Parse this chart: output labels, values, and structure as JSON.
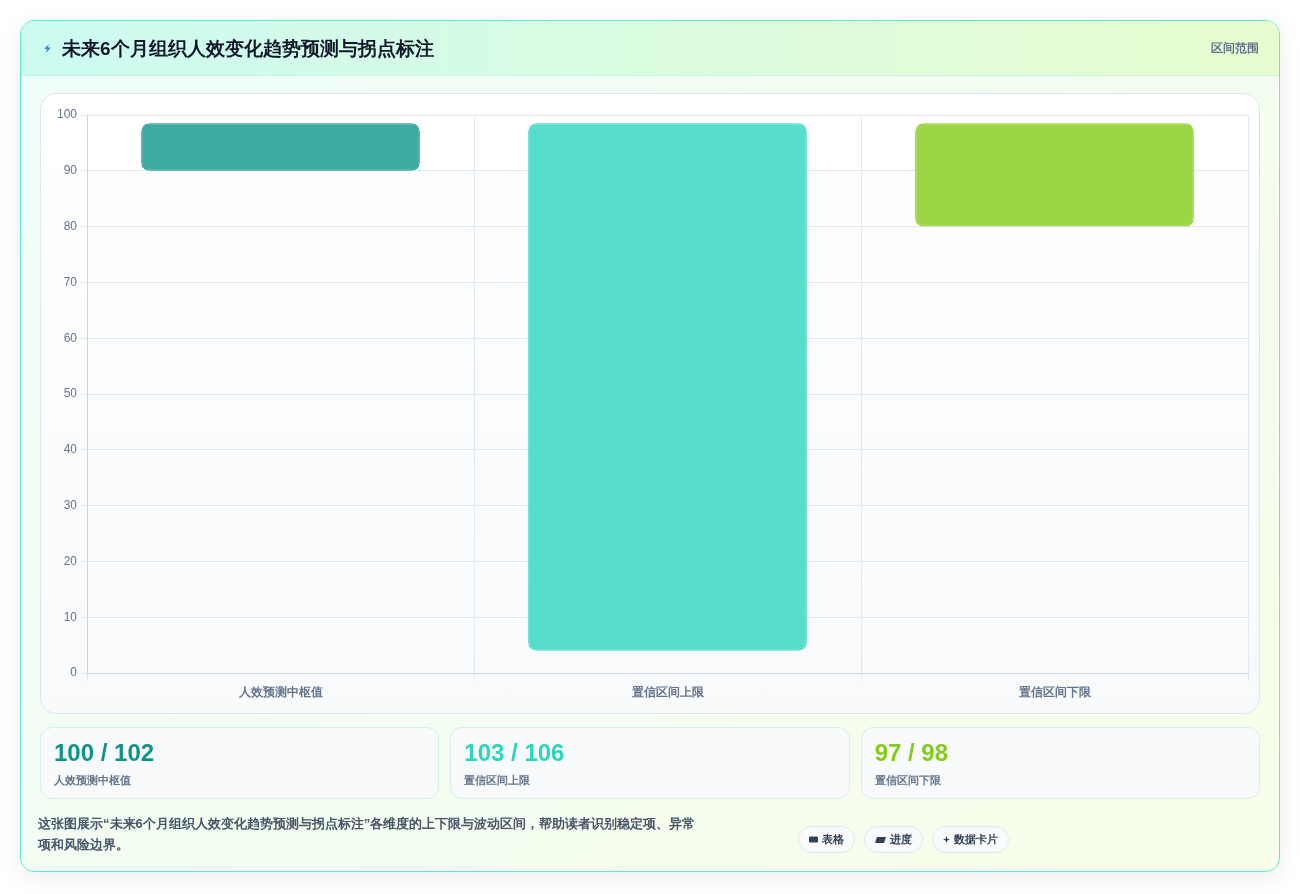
{
  "chart_data": {
    "type": "bar",
    "title": "未来6个月组织人效变化趋势预测与拐点标注",
    "subtitle": "区间范围",
    "categories": [
      "人效预测中枢值",
      "置信区间上限",
      "置信区间下限"
    ],
    "values": [
      8.5,
      94.5,
      18.5
    ],
    "base": [
      90,
      4,
      80
    ],
    "colors": [
      "#3da9a0",
      "#57ddcc",
      "#9dd645"
    ],
    "ylim": [
      0,
      100
    ],
    "yticks": [
      0,
      10,
      20,
      30,
      40,
      50,
      60,
      70,
      80,
      90,
      100
    ],
    "grid": true,
    "annotations": [
      "100 / 102",
      "103 / 106",
      "97 / 98",
      "这张图展示“未来6个月组织人效变化趋势预测与拐点标注”各维度的上下限与波动区间，帮助读者识别稳定项、异常项和风险边界。",
      "表格",
      "进度",
      "数据卡片"
    ]
  }
}
